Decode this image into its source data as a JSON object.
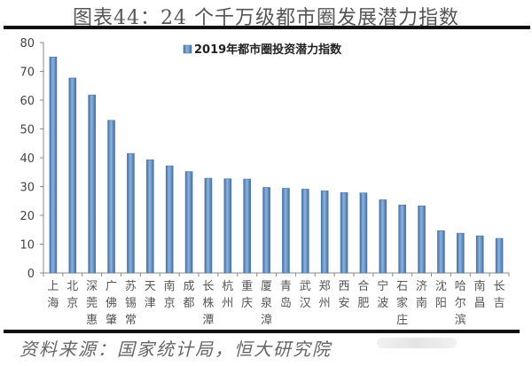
{
  "title": "图表44：24 个千万级都市圈发展潜力指数",
  "source": "资料来源：国家统计局，恒大研究院",
  "chart_data": {
    "type": "bar",
    "title": "图表44：24 个千万级都市圈发展潜力指数",
    "xlabel": "",
    "ylabel": "",
    "ylim": [
      0,
      80
    ],
    "yticks": [
      0,
      10,
      20,
      30,
      40,
      50,
      60,
      70,
      80
    ],
    "grid": false,
    "legend_position": "top-right",
    "bar_color": "#5b8cc4",
    "categories": [
      "上海",
      "北京",
      "深莞惠",
      "广佛肇",
      "苏锡常",
      "天津",
      "南京",
      "成都",
      "长株潭",
      "杭州",
      "重庆",
      "厦泉漳",
      "青岛",
      "武汉",
      "郑州",
      "西安",
      "合肥",
      "宁波",
      "石家庄",
      "济南",
      "沈阳",
      "哈尔滨",
      "南昌",
      "长吉"
    ],
    "series": [
      {
        "name": "2019年都市圈投资潜力指数",
        "values": [
          75.0,
          67.7,
          61.8,
          53.0,
          41.5,
          39.3,
          37.2,
          35.2,
          32.9,
          32.7,
          32.6,
          29.7,
          29.4,
          29.1,
          28.5,
          27.9,
          27.8,
          25.4,
          23.6,
          23.3,
          14.7,
          13.8,
          12.9,
          12.0
        ]
      }
    ]
  }
}
